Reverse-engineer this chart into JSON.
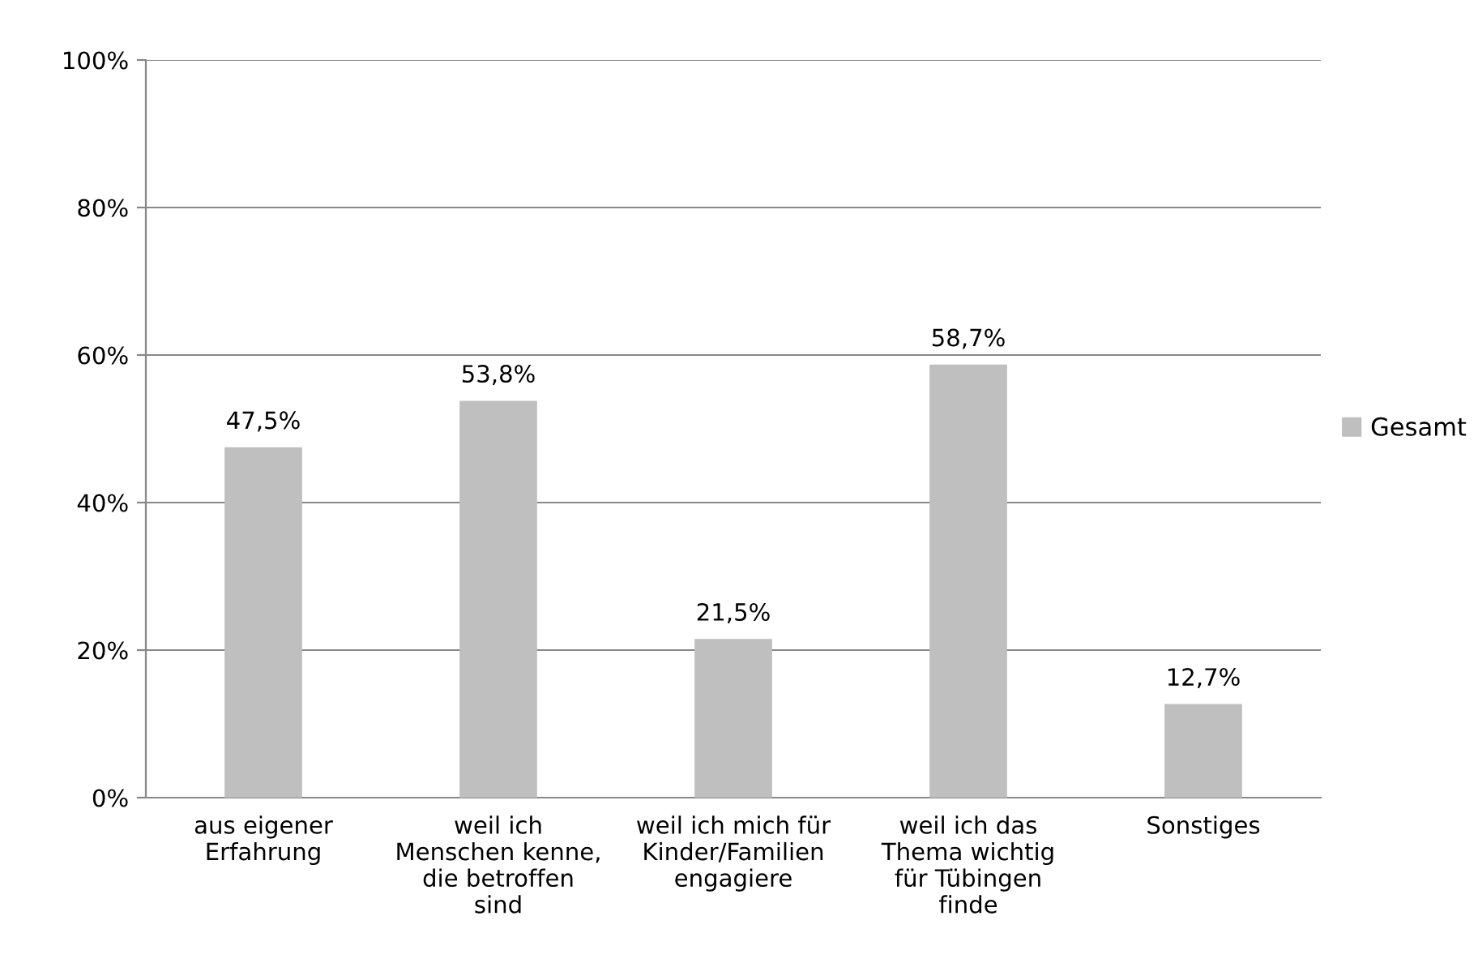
{
  "chart_data": {
    "type": "bar",
    "categories": [
      "aus eigener\nErfahrung",
      "weil ich\nMenschen kenne,\ndie betroffen\nsind",
      "weil ich mich für\nKinder/Familien\nengagiere",
      "weil ich das\nThema wichtig\nfür Tübingen\nfinde",
      "Sonstiges"
    ],
    "series": [
      {
        "name": "Gesamt",
        "color": "#bfbfbf",
        "values": [
          47.5,
          53.8,
          21.5,
          58.7,
          12.7
        ],
        "value_labels": [
          "47,5%",
          "53,8%",
          "21,5%",
          "58,7%",
          "12,7%"
        ]
      }
    ],
    "ylim": [
      0,
      100
    ],
    "yticks": [
      {
        "value": 0,
        "label": "0%"
      },
      {
        "value": 20,
        "label": "20%"
      },
      {
        "value": 40,
        "label": "40%"
      },
      {
        "value": 60,
        "label": "60%"
      },
      {
        "value": 80,
        "label": "80%"
      },
      {
        "value": 100,
        "label": "100%"
      }
    ],
    "grid": "y",
    "legend": "right"
  }
}
